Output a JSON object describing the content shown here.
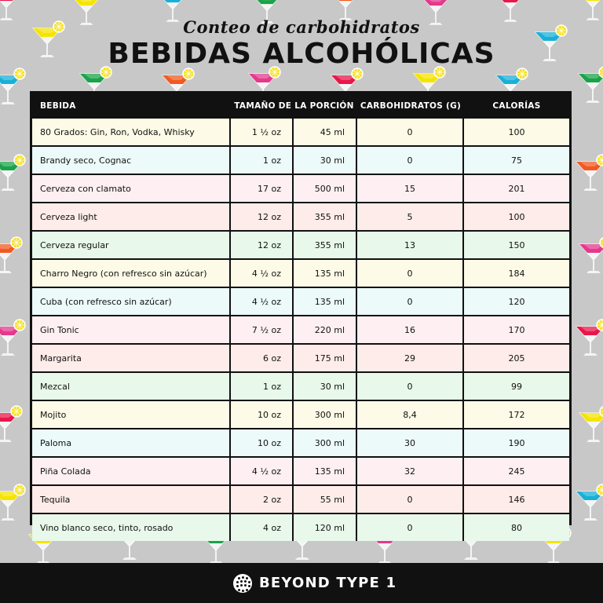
{
  "subtitle": "Conteo de carbohidratos",
  "title": "BEBIDAS ALCOHÓLICAS",
  "headers": {
    "drink": "BEBIDA",
    "portion": "TAMAÑO DE LA PORCIÓN",
    "carbs": "CARBOHIDRATOS (G)",
    "calories": "CALORÍAS"
  },
  "rows": [
    {
      "name": "80 Grados: Gin, Ron, Vodka, Whisky",
      "oz": "1 ½ oz",
      "ml": "45 ml",
      "carbs": "0",
      "calories": "100"
    },
    {
      "name": "Brandy seco, Cognac",
      "oz": "1 oz",
      "ml": "30 ml",
      "carbs": "0",
      "calories": "75"
    },
    {
      "name": "Cerveza con clamato",
      "oz": "17 oz",
      "ml": "500 ml",
      "carbs": "15",
      "calories": "201"
    },
    {
      "name": "Cerveza light",
      "oz": "12 oz",
      "ml": "355 ml",
      "carbs": "5",
      "calories": "100"
    },
    {
      "name": "Cerveza regular",
      "oz": "12 oz",
      "ml": "355 ml",
      "carbs": "13",
      "calories": "150"
    },
    {
      "name": "Charro Negro (con refresco sin azúcar)",
      "oz": "4 ½ oz",
      "ml": "135 ml",
      "carbs": "0",
      "calories": "184"
    },
    {
      "name": "Cuba (con refresco sin azúcar)",
      "oz": "4 ½ oz",
      "ml": "135 ml",
      "carbs": "0",
      "calories": "120"
    },
    {
      "name": "Gin Tonic",
      "oz": "7 ½ oz",
      "ml": "220 ml",
      "carbs": "16",
      "calories": "170"
    },
    {
      "name": "Margarita",
      "oz": "6 oz",
      "ml": "175 ml",
      "carbs": "29",
      "calories": "205"
    },
    {
      "name": "Mezcal",
      "oz": "1 oz",
      "ml": "30 ml",
      "carbs": "0",
      "calories": "99"
    },
    {
      "name": "Mojito",
      "oz": "10 oz",
      "ml": "300 ml",
      "carbs": "8,4",
      "calories": "172"
    },
    {
      "name": "Paloma",
      "oz": "10 oz",
      "ml": "300 ml",
      "carbs": "30",
      "calories": "190"
    },
    {
      "name": "Piña Colada",
      "oz": "4 ½ oz",
      "ml": "135 ml",
      "carbs": "32",
      "calories": "245"
    },
    {
      "name": "Tequila",
      "oz": "2 oz",
      "ml": "55 ml",
      "carbs": "0",
      "calories": "146"
    },
    {
      "name": "Vino blanco seco, tinto, rosado",
      "oz": "4 oz",
      "ml": "120 ml",
      "carbs": "0",
      "calories": "80"
    }
  ],
  "footer": {
    "brand": "BEYOND TYPE 1"
  },
  "colors": {
    "background": "#c8c8c8",
    "header": "#111111",
    "row_tints": [
      "#fdfbe7",
      "#ecfaf9",
      "#fdeff2",
      "#fdece9",
      "#e8f8ea"
    ],
    "cocktail_drinks": [
      "#e8174a",
      "#f5e400",
      "#19b0d8",
      "#1aa34a",
      "#f25a21",
      "#e5398c"
    ],
    "lemon": "#f7e11b"
  },
  "decoration_icon": "cocktail-glass-icon"
}
